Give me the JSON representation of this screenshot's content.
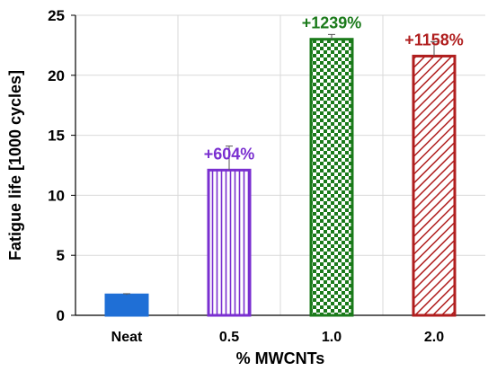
{
  "chart_data": {
    "type": "bar",
    "title": "",
    "xlabel": "% MWCNTs",
    "ylabel": "Fatigue life [1000 cycles]",
    "ylim": [
      0,
      25
    ],
    "yticks": [
      0,
      5,
      10,
      15,
      20,
      25
    ],
    "grid": "on",
    "categories": [
      "Neat",
      "0.5",
      "1.0",
      "2.0"
    ],
    "values": [
      1.7,
      12.1,
      23.0,
      21.6
    ],
    "error": [
      0.1,
      2.0,
      0.4,
      1.2
    ],
    "annotations": [
      "",
      "+604%",
      "+1239%",
      "+1158%"
    ],
    "colors": [
      "#1f6fd6",
      "#7a2fd0",
      "#1a7a1a",
      "#b01e1e"
    ],
    "fills": [
      "solid",
      "vertical-lines",
      "checker",
      "diagonal-lines"
    ]
  }
}
